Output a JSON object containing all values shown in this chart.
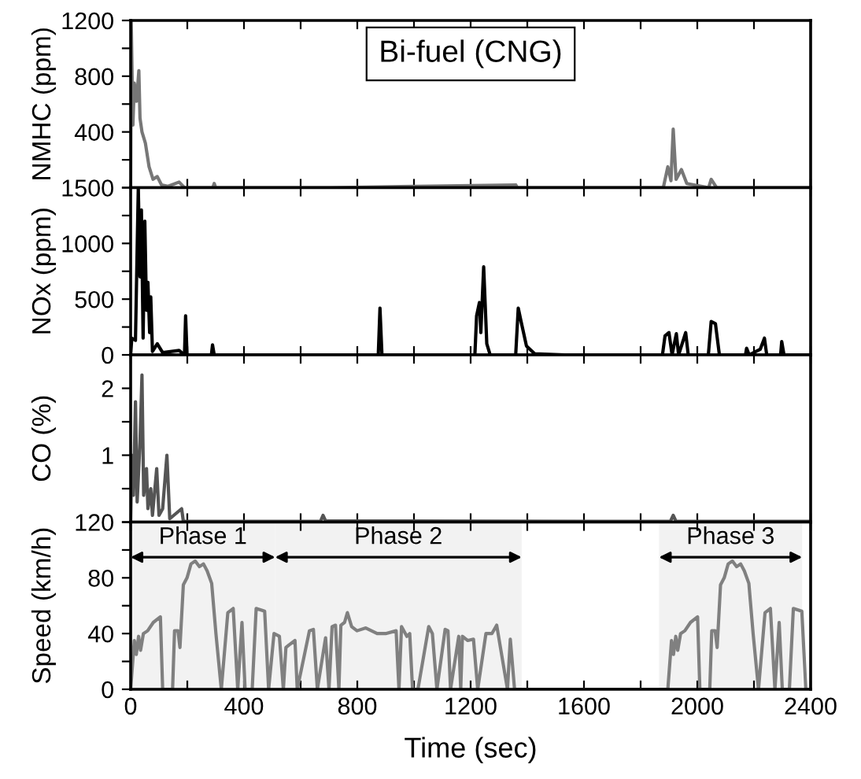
{
  "chart_data": [
    {
      "type": "line",
      "title": "Bi-fuel (CNG)",
      "ylabel": "NMHC (ppm)",
      "tick_labels": "y",
      "grid": false,
      "legend": false,
      "xlim": [
        0,
        2400
      ],
      "xticks": [
        {
          "value": 0,
          "label": null
        },
        {
          "value": 200,
          "label": null
        },
        {
          "value": 400,
          "label": null
        },
        {
          "value": 600,
          "label": null
        },
        {
          "value": 800,
          "label": null
        },
        {
          "value": 1000,
          "label": null
        },
        {
          "value": 1200,
          "label": null
        },
        {
          "value": 1400,
          "label": null
        },
        {
          "value": 1600,
          "label": null
        },
        {
          "value": 1800,
          "label": null
        },
        {
          "value": 2000,
          "label": null
        },
        {
          "value": 2200,
          "label": null
        },
        {
          "value": 2400,
          "label": null
        }
      ],
      "ylim": [
        0,
        1200
      ],
      "yticks": [
        {
          "value": 0,
          "label": null
        },
        {
          "value": 200,
          "label": null
        },
        400,
        {
          "value": 600,
          "label": null
        },
        800,
        {
          "value": 1000,
          "label": null
        },
        1200
      ],
      "x": [
        0,
        2,
        8,
        13,
        21,
        29,
        33,
        40,
        52,
        65,
        79,
        94,
        109,
        132,
        171,
        190,
        290,
        295,
        300,
        700,
        1359,
        1365,
        1880,
        1896,
        1907,
        1915,
        1925,
        1944,
        1963,
        2040,
        2049,
        2068,
        2400
      ],
      "series": [
        {
          "color": "#777777",
          "values": [
            0,
            1200,
            450,
            750,
            620,
            840,
            500,
            400,
            320,
            150,
            60,
            80,
            20,
            10,
            40,
            0,
            0,
            30,
            0,
            0,
            20,
            0,
            0,
            150,
            50,
            420,
            60,
            130,
            30,
            0,
            60,
            0,
            0
          ]
        }
      ]
    },
    {
      "type": "line",
      "ylabel": "NOx (ppm)",
      "tick_labels": "y",
      "grid": false,
      "legend": false,
      "xlim": [
        0,
        2400
      ],
      "xticks": [
        {
          "value": 0,
          "label": null
        },
        {
          "value": 200,
          "label": null
        },
        {
          "value": 400,
          "label": null
        },
        {
          "value": 600,
          "label": null
        },
        {
          "value": 800,
          "label": null
        },
        {
          "value": 1000,
          "label": null
        },
        {
          "value": 1200,
          "label": null
        },
        {
          "value": 1400,
          "label": null
        },
        {
          "value": 1600,
          "label": null
        },
        {
          "value": 1800,
          "label": null
        },
        {
          "value": 2000,
          "label": null
        },
        {
          "value": 2200,
          "label": null
        },
        {
          "value": 2400,
          "label": null
        }
      ],
      "ylim": [
        0,
        1500
      ],
      "yticks": [
        0,
        {
          "value": 250,
          "label": null
        },
        500,
        {
          "value": 750,
          "label": null
        },
        1000,
        {
          "value": 1250,
          "label": null
        },
        1500
      ],
      "x": [
        0,
        4,
        17,
        27,
        33,
        38,
        44,
        50,
        56,
        61,
        67,
        71,
        77,
        94,
        113,
        171,
        190,
        194,
        199,
        285,
        289,
        295,
        870,
        874,
        880,
        887,
        1215,
        1221,
        1231,
        1236,
        1246,
        1257,
        1269,
        1359,
        1368,
        1378,
        1397,
        1426,
        1532,
        1877,
        1886,
        1900,
        1911,
        1926,
        1934,
        1959,
        1968,
        2039,
        2049,
        2064,
        2078,
        2170,
        2174,
        2183,
        2222,
        2237,
        2245,
        2294,
        2298,
        2306,
        2400
      ],
      "series": [
        {
          "color": "#000000",
          "values": [
            0,
            150,
            130,
            1500,
            700,
            1300,
            150,
            1200,
            400,
            650,
            200,
            520,
            30,
            100,
            20,
            40,
            0,
            350,
            0,
            0,
            90,
            0,
            0,
            0,
            420,
            0,
            0,
            350,
            470,
            200,
            790,
            100,
            0,
            0,
            420,
            300,
            80,
            10,
            0,
            0,
            170,
            200,
            0,
            190,
            0,
            200,
            0,
            0,
            300,
            280,
            0,
            0,
            60,
            0,
            50,
            150,
            0,
            0,
            120,
            0,
            0
          ]
        }
      ]
    },
    {
      "type": "line",
      "ylabel": "CO (%)",
      "tick_labels": "y",
      "grid": false,
      "legend": false,
      "xlim": [
        0,
        2400
      ],
      "xticks": [
        {
          "value": 0,
          "label": null
        },
        {
          "value": 200,
          "label": null
        },
        {
          "value": 400,
          "label": null
        },
        {
          "value": 600,
          "label": null
        },
        {
          "value": 800,
          "label": null
        },
        {
          "value": 1000,
          "label": null
        },
        {
          "value": 1200,
          "label": null
        },
        {
          "value": 1400,
          "label": null
        },
        {
          "value": 1600,
          "label": null
        },
        {
          "value": 1800,
          "label": null
        },
        {
          "value": 2000,
          "label": null
        },
        {
          "value": 2200,
          "label": null
        },
        {
          "value": 2400,
          "label": null
        }
      ],
      "ylim": [
        0,
        2.5
      ],
      "yticks": [
        {
          "value": 0,
          "label": null
        },
        {
          "value": 0.5,
          "label": null
        },
        1,
        {
          "value": 1.5,
          "label": null
        },
        2
      ],
      "x": [
        0,
        4,
        10,
        17,
        23,
        33,
        40,
        46,
        56,
        61,
        71,
        77,
        92,
        100,
        113,
        128,
        138,
        180,
        186,
        670,
        679,
        688,
        1905,
        1915,
        1925,
        2400
      ],
      "series": [
        {
          "color": "#555555",
          "values": [
            0,
            1.0,
            0.4,
            1.8,
            0.3,
            1.2,
            2.2,
            0.4,
            0.8,
            0.2,
            0.5,
            0.1,
            0.8,
            0.1,
            0.2,
            1.0,
            0.05,
            0.2,
            0.01,
            0.01,
            0.1,
            0.02,
            0.01,
            0.1,
            0.01,
            0.01
          ]
        }
      ]
    },
    {
      "type": "line",
      "xlabel": "Time (sec)",
      "ylabel": "Speed (km/h)",
      "grid": false,
      "legend": false,
      "xlim": [
        0,
        2400
      ],
      "xticks": [
        0,
        {
          "value": 200,
          "label": null
        },
        400,
        {
          "value": 600,
          "label": null
        },
        800,
        {
          "value": 1000,
          "label": null
        },
        1200,
        {
          "value": 1400,
          "label": null
        },
        1600,
        {
          "value": 1800,
          "label": null
        },
        2000,
        {
          "value": 2200,
          "label": null
        },
        2400
      ],
      "ylim": [
        0,
        120
      ],
      "yticks": [
        0,
        {
          "value": 20,
          "label": null
        },
        40,
        {
          "value": 60,
          "label": null
        },
        80,
        {
          "value": 100,
          "label": null
        },
        120
      ],
      "bands": [
        {
          "axis": "x",
          "from": 0,
          "to": 510,
          "label": "Phase 1",
          "color": "#f2f2f2"
        },
        {
          "axis": "x",
          "from": 510,
          "to": 1380,
          "label": "Phase 2",
          "color": "#f2f2f2"
        },
        {
          "axis": "x",
          "from": 1865,
          "to": 2370,
          "label": "Phase 3",
          "color": "#f2f2f2"
        }
      ],
      "x": [
        0,
        13,
        20,
        28,
        35,
        45,
        60,
        80,
        105,
        113,
        148,
        155,
        167,
        174,
        186,
        199,
        213,
        228,
        243,
        257,
        270,
        286,
        301,
        320,
        343,
        362,
        378,
        393,
        404,
        429,
        443,
        473,
        487,
        506,
        525,
        539,
        548,
        560,
        580,
        588,
        631,
        645,
        659,
        688,
        700,
        711,
        723,
        735,
        742,
        755,
        765,
        780,
        799,
        830,
        870,
        900,
        937,
        947,
        956,
        975,
        985,
        995,
        1014,
        1052,
        1065,
        1081,
        1110,
        1120,
        1129,
        1158,
        1165,
        1171,
        1190,
        1210,
        1225,
        1254,
        1275,
        1292,
        1330,
        1340,
        1355,
        1896,
        1909,
        1916,
        1924,
        1931,
        1941,
        1956,
        1976,
        2001,
        2009,
        2044,
        2051,
        2063,
        2070,
        2082,
        2095,
        2109,
        2124,
        2139,
        2153,
        2166,
        2182,
        2197,
        2216,
        2239,
        2258,
        2274,
        2289,
        2300,
        2325,
        2339,
        2369,
        2383,
        2400
      ],
      "series": [
        {
          "color": "#808080",
          "values": [
            0,
            35,
            25,
            38,
            28,
            40,
            42,
            48,
            52,
            0,
            0,
            42,
            42,
            30,
            75,
            80,
            90,
            92,
            88,
            90,
            85,
            76,
            40,
            0,
            55,
            58,
            0,
            48,
            0,
            0,
            58,
            56,
            0,
            40,
            38,
            0,
            30,
            32,
            35,
            0,
            42,
            43,
            0,
            37,
            0,
            45,
            46,
            0,
            46,
            48,
            55,
            45,
            42,
            44,
            40,
            40,
            42,
            0,
            45,
            38,
            40,
            0,
            0,
            45,
            40,
            0,
            43,
            42,
            0,
            38,
            0,
            38,
            35,
            36,
            0,
            40,
            40,
            46,
            0,
            36,
            0,
            0,
            35,
            25,
            38,
            28,
            40,
            42,
            48,
            52,
            0,
            0,
            42,
            42,
            30,
            75,
            80,
            90,
            92,
            88,
            90,
            85,
            76,
            40,
            0,
            55,
            58,
            0,
            48,
            0,
            0,
            58,
            56,
            0,
            0
          ]
        }
      ]
    }
  ]
}
